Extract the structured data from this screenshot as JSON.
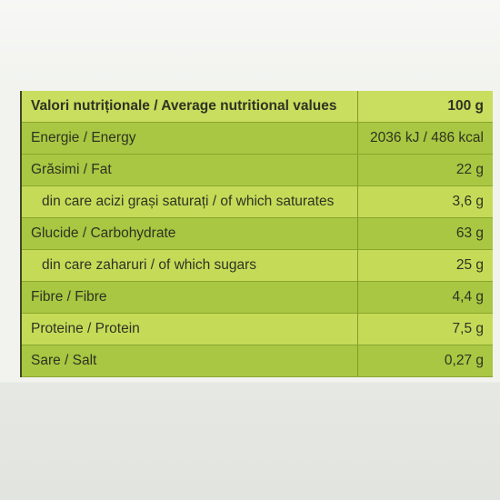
{
  "table": {
    "header": [
      "Valori nutriționale / Average nutritional values",
      "100 g"
    ],
    "rows": [
      [
        "Energie / Energy",
        "2036 kJ / 486 kcal"
      ],
      [
        "Grăsimi / Fat",
        "22 g"
      ],
      [
        "din care acizi grași saturați / of which saturates",
        "3,6 g"
      ],
      [
        "Glucide / Carbohydrate",
        "63 g"
      ],
      [
        "din care zaharuri / of which sugars",
        "25 g"
      ],
      [
        "Fibre / Fibre",
        "4,4 g"
      ],
      [
        "Proteine / Protein",
        "7,5 g"
      ],
      [
        "Sare / Salt",
        "0,27 g"
      ]
    ]
  }
}
